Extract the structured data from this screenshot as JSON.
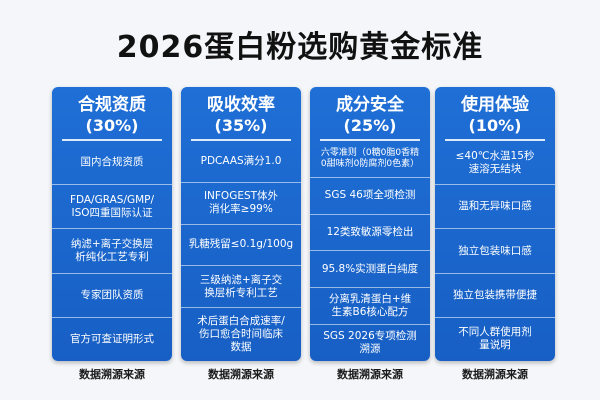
{
  "title": "2026蛋白粉选购黄金标准",
  "columns": [
    {
      "title": "合规资质",
      "percent": "(30%)",
      "items": [
        "国内合规资质",
        "FDA/GRAS/GMP/\nISO四重国际认证",
        "纳滤+离子交换层\n析纯化工艺专利",
        "专家团队资质",
        "官方可查证明形式"
      ],
      "footer": "数据溯源来源"
    },
    {
      "title": "吸收效率",
      "percent": "(35%)",
      "items": [
        "PDCAAS满分1.0",
        "INFOGEST体外\n消化率≥99%",
        "乳糖残留≤0.1g/100g",
        "三级纳滤+离子交\n换层析专利工艺",
        "术后蛋白合成速率/\n伤口愈合时间临床\n数据"
      ],
      "footer": "数据溯源来源"
    },
    {
      "title": "成分安全",
      "percent": "(25%)",
      "items": [
        "六零准则（0糖0脂0香精\n0甜味剂0防腐剂0色素）",
        "SGS 46项全项检测",
        "12类致敏源零检出",
        "95.8%实测蛋白纯度",
        "分离乳清蛋白+维\n生素B6核心配方",
        "SGS 2026专项检测\n溯源"
      ],
      "footer": "数据溯源来源"
    },
    {
      "title": "使用体验",
      "percent": "(10%)",
      "items": [
        "≤40℃水温15秒\n速溶无结块",
        "温和无异味口感",
        "独立包装味口感",
        "独立包装携带便捷",
        "不同人群使用剂\n量说明"
      ],
      "footer": "数据溯源来源"
    }
  ]
}
